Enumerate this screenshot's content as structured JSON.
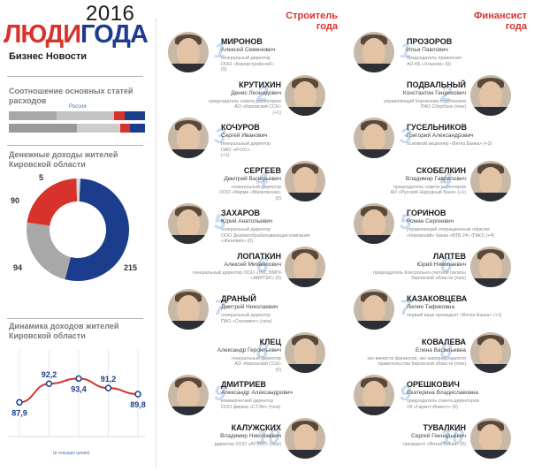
{
  "header": {
    "year": "2016",
    "logo_part1": "ЛЮДИ",
    "logo_part2": "ГОДА",
    "subtitle": "Бизнес Новости"
  },
  "colors": {
    "red": "#d8322c",
    "blue": "#1b3d8c",
    "grey": "#a8a8a8",
    "dark": "#1a1a1a"
  },
  "expenses": {
    "title": "Соотношение основных статей расходов",
    "region_label": "Россия",
    "kirov_shares": [
      0.35,
      0.42,
      0.08,
      0.15
    ],
    "russia_shares": [
      0.5,
      0.32,
      0.07,
      0.11
    ]
  },
  "income": {
    "title": "Денежные доходы жителей Кировской области",
    "label_red": "90",
    "label_grey": "94",
    "label_blue": "215",
    "label_small": "5"
  },
  "dynamics": {
    "title": "Динамика доходов жителей Кировской области",
    "footnote": "(в текущих ценах)",
    "points": [
      "87,9",
      "92,2",
      "93,4",
      "91,2",
      "89,8"
    ]
  },
  "chart_data": [
    {
      "type": "pie",
      "title": "Денежные доходы жителей Кировской области",
      "values": [
        215,
        94,
        90,
        5
      ]
    },
    {
      "type": "line",
      "title": "Динамика доходов жителей Кировской области",
      "series": [
        {
          "values": [
            87.9,
            92.2,
            93.4,
            91.2,
            89.8
          ]
        }
      ]
    }
  ],
  "builders": {
    "header_line1": "Строитель",
    "header_line2": "года",
    "people": [
      {
        "rank": "1",
        "name": "МИРОНОВ",
        "full": "Алексей Семенович",
        "info1": "генеральный директор",
        "info2": "ООО «Кировстройснаб»",
        "info3": "(0)"
      },
      {
        "rank": "2",
        "name": "КРУТИХИН",
        "full": "Денис Леонидович",
        "info1": "председатель совета директоров",
        "info2": "АО «Кировский ССК»",
        "info3": "(+1)"
      },
      {
        "rank": "3",
        "name": "КОЧУРОВ",
        "full": "Сергей Иванович",
        "info1": "генеральный директор",
        "info2": "ОАО «КЧУС»",
        "info3": "(+1)"
      },
      {
        "rank": "4",
        "name": "СЕРГЕЕВ",
        "full": "Дмитрий Валерьевич",
        "info1": "генеральный директор",
        "info2": "ООО «Фирма «Маяковская»",
        "info3": "(0)"
      },
      {
        "rank": "5",
        "name": "ЗАХАРОВ",
        "full": "Юрий Анатольевич",
        "info1": "генеральный директор",
        "info2": "ООО Деревообрабатывающая компания",
        "info3": "«Женевия» (0)"
      },
      {
        "rank": "6",
        "name": "ЛОПАТКИН",
        "full": "Алексей Михайлович",
        "info1": "генеральный директор ООО «УКС ВМП»",
        "info2": "«АВИТЕК» (0)",
        "info3": ""
      },
      {
        "rank": "7",
        "name": "ДРАНЫЙ",
        "full": "Дмитрий Николаевич",
        "info1": "генеральный директор",
        "info2": "ПАО «Стромвит» (new)",
        "info3": ""
      },
      {
        "rank": "8",
        "name": "КЛЕЦ",
        "full": "Александр Геронтьевич",
        "info1": "генеральный директор",
        "info2": "АО «Кировский ССК»",
        "info3": "(0)"
      },
      {
        "rank": "9",
        "name": "ДМИТРИЕВ",
        "full": "Александр Александрович",
        "info1": "коммерческий директор",
        "info2": "ООО фирма «СТЭН» (new)",
        "info3": ""
      },
      {
        "rank": "10",
        "name": "КАЛУЖСКИХ",
        "full": "Владимир Николаевич",
        "info1": "директор ООО «АТЭКС» (new)",
        "info2": "",
        "info3": ""
      }
    ]
  },
  "financiers": {
    "header_line1": "Финансист",
    "header_line2": "года",
    "people": [
      {
        "rank": "1",
        "name": "ПРОЗОРОВ",
        "full": "Илья Павлович",
        "info1": "председатель правления",
        "info2": "АО КБ «Хлынов» (0)",
        "info3": ""
      },
      {
        "rank": "2",
        "name": "ПОДВАЛЬНЫЙ",
        "full": "Константин Генрихович",
        "info1": "управляющий Кировским отделением",
        "info2": "ПАО Сбербанк (new)",
        "info3": ""
      },
      {
        "rank": "3",
        "name": "ГУСЕЛЬНИКОВ",
        "full": "Григорий Александрович",
        "info1": "основной акционер «Вятка Банка» (+3)",
        "info2": "",
        "info3": ""
      },
      {
        "rank": "4",
        "name": "СКОБЕЛКИН",
        "full": "Владимир Гаврилович",
        "info1": "председатель совета директоров",
        "info2": "АО «Русский Народный Банк» (+1)",
        "info3": ""
      },
      {
        "rank": "5",
        "name": "ГОРИНОВ",
        "full": "Роман Сергеевич",
        "info1": "управляющий операционным офисом",
        "info2": "«Кировский» банка «ВТБ 24» (ПАО) (+4)",
        "info3": ""
      },
      {
        "rank": "6",
        "name": "ЛАПТЕВ",
        "full": "Юрий Николаевич",
        "info1": "председатель Контрольно-счетной палаты",
        "info2": "Кировской области (new)",
        "info3": ""
      },
      {
        "rank": "7",
        "name": "КАЗАКОВЦЕВА",
        "full": "Лилия Тафиковна",
        "info1": "первый вице-президент «Вятка Банка» (+1)",
        "info2": "",
        "info3": ""
      },
      {
        "rank": "8",
        "name": "КОВАЛЕВА",
        "full": "Елена Васильевна",
        "info1": "экс-министр финансов, экс-зампредседателя",
        "info2": "правительства Кировской области (new)",
        "info3": ""
      },
      {
        "rank": "9",
        "name": "ОРЕШКОВИЧ",
        "full": "Екатерина Владиславовна",
        "info1": "председатель совета директоров",
        "info2": "УК «Гарант-Инвест» (0)",
        "info3": ""
      },
      {
        "rank": "10",
        "name": "ТУВАЛКИН",
        "full": "Сергей Геннадьевич",
        "info1": "президент «Вятка Банка» (0)",
        "info2": "",
        "info3": ""
      }
    ]
  }
}
